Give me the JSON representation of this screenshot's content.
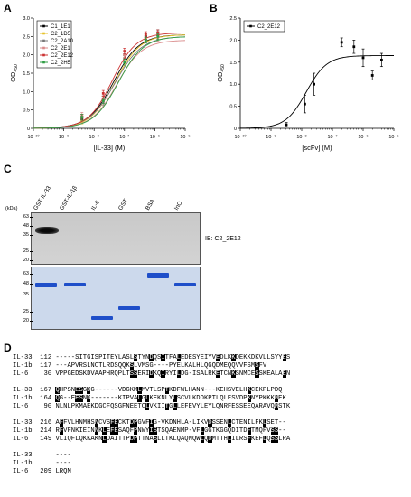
{
  "panels": {
    "a": "A",
    "b": "B",
    "c": "C",
    "d": "D"
  },
  "chart_data": [
    {
      "type": "line",
      "xlabel": "[IL-33] (M)",
      "ylabel": "OD",
      "ylabel_sub": "450",
      "xscale": "log",
      "xlim": [
        1e-10,
        1e-05
      ],
      "ylim": [
        0,
        3.0
      ],
      "xticks": [
        "10⁻¹⁰",
        "10⁻⁹",
        "10⁻⁸",
        "10⁻⁷",
        "10⁻⁶",
        "10⁻⁵"
      ],
      "yticks": [
        "0",
        "0.5",
        "1.0",
        "1.5",
        "2.0",
        "2.5",
        "3.0"
      ],
      "legend_position": "top-left",
      "series": [
        {
          "name": "C1_1E1",
          "color": "#000000",
          "bottom": 0.0,
          "top": 2.55,
          "logEC50": -7.35,
          "hill": 1.05,
          "points": [
            [
              -8.4,
              0.25
            ],
            [
              -7.7,
              0.8
            ],
            [
              -7.0,
              2.0
            ],
            [
              -6.3,
              2.5
            ],
            [
              -5.9,
              2.6
            ]
          ]
        },
        {
          "name": "C2_1D5",
          "color": "#e6c229",
          "bottom": 0.0,
          "top": 2.55,
          "logEC50": -7.3,
          "hill": 1.05,
          "points": [
            [
              -8.4,
              0.2
            ],
            [
              -7.7,
              0.75
            ],
            [
              -7.0,
              1.9
            ],
            [
              -6.3,
              2.45
            ],
            [
              -5.9,
              2.55
            ]
          ]
        },
        {
          "name": "C2_2A10",
          "color": "#777777",
          "bottom": 0.0,
          "top": 2.5,
          "logEC50": -7.3,
          "hill": 1.0,
          "points": [
            [
              -8.4,
              0.3
            ],
            [
              -7.7,
              0.7
            ],
            [
              -7.0,
              1.9
            ],
            [
              -6.3,
              2.4
            ],
            [
              -5.9,
              2.55
            ]
          ]
        },
        {
          "name": "C2_2E1",
          "color": "#d98a8a",
          "bottom": 0.0,
          "top": 2.4,
          "logEC50": -7.25,
          "hill": 1.05,
          "points": [
            [
              -8.4,
              0.35
            ],
            [
              -7.7,
              0.8
            ],
            [
              -7.0,
              2.0
            ],
            [
              -6.3,
              2.4
            ],
            [
              -5.9,
              2.45
            ]
          ]
        },
        {
          "name": "C2_2E12",
          "color": "#cc3333",
          "bottom": 0.0,
          "top": 2.6,
          "logEC50": -7.4,
          "hill": 1.1,
          "points": [
            [
              -8.4,
              0.3
            ],
            [
              -7.7,
              0.95
            ],
            [
              -7.0,
              2.1
            ],
            [
              -6.3,
              2.55
            ],
            [
              -5.9,
              2.6
            ]
          ]
        },
        {
          "name": "C2_2H5",
          "color": "#2f9e44",
          "bottom": 0.0,
          "top": 2.5,
          "logEC50": -7.2,
          "hill": 1.05,
          "points": [
            [
              -8.4,
              0.3
            ],
            [
              -7.7,
              0.75
            ],
            [
              -7.0,
              1.8
            ],
            [
              -6.3,
              2.4
            ],
            [
              -5.9,
              2.5
            ]
          ]
        }
      ]
    },
    {
      "type": "scatter",
      "xlabel": "[scFv] (M)",
      "ylabel": "OD",
      "ylabel_sub": "450",
      "xscale": "log",
      "xlim": [
        1e-10,
        1e-05
      ],
      "ylim": [
        0,
        2.5
      ],
      "xticks": [
        "10⁻¹⁰",
        "10⁻⁹",
        "10⁻⁸",
        "10⁻⁷",
        "10⁻⁶",
        "10⁻⁵"
      ],
      "yticks": [
        "0",
        "0.5",
        "1.0",
        "1.5",
        "2.0",
        "2.5"
      ],
      "legend_position": "top-left",
      "series": [
        {
          "name": "C2_2E12",
          "color": "#000000",
          "bottom": 0.0,
          "top": 1.65,
          "logEC50": -7.85,
          "hill": 1.3,
          "points": [
            [
              -8.5,
              0.08,
              0.05
            ],
            [
              -7.9,
              0.55,
              0.2
            ],
            [
              -7.6,
              1.0,
              0.25
            ],
            [
              -6.7,
              1.95,
              0.1
            ],
            [
              -6.3,
              1.85,
              0.15
            ],
            [
              -6.0,
              1.6,
              0.2
            ],
            [
              -5.7,
              1.2,
              0.1
            ],
            [
              -5.4,
              1.55,
              0.15
            ]
          ]
        }
      ]
    }
  ],
  "blot": {
    "lanes": [
      "GST-IL-33",
      "GST-IL-1β",
      "IL-6",
      "GST",
      "BSA",
      "InC"
    ],
    "kda_label": "(kDa)",
    "wb_markers": [
      "63",
      "48",
      "35",
      "25",
      "20"
    ],
    "gel_markers": [
      "63",
      "48",
      "35",
      "25",
      "20"
    ],
    "ib_label": "IB: C2_2E12"
  },
  "alignment": {
    "blocks": [
      [
        {
          "name": "IL-33",
          "start": "112",
          "seq": "-----SITGISPITEYLASLSTYNDQSITFALEDESYEIYVEDLKKDEKKDKVLLSYYES"
        },
        {
          "name": "IL-1b",
          "start": "117",
          "seq": "---APVRSLNCTLRDSQQKSLVMSG----PYELKALHLQGQDMEQQVVFSMSFV"
        },
        {
          "name": "IL-6",
          "start": "30",
          "seq": "VPPGEDSKDVAAPHRQPLTSSERIDKQIRYILDG-ISALRKETCNKSNMCESSKEALAEN"
        }
      ],
      [
        {
          "name": "IL-33",
          "start": "167",
          "seq": "QHPSNESGDG------VDGKMLMVTLSPTKDFWLHANN---KEHSVELHKCEKPLPDQ"
        },
        {
          "name": "IL-1b",
          "start": "164",
          "seq": "QG--EESND-------KIPVALGLKEKNLYLSCVLKDDKPTLQLESVDPKNYPKKKMEK"
        },
        {
          "name": "IL-6",
          "start": "90",
          "seq": "NLNLPKMAEKDGCFQSGFNEETCLVKIITGLLEFEVYLEYLQNRFESSEEQARAVQMSTK"
        }
      ],
      [
        {
          "name": "IL-33",
          "start": "216",
          "seq": "AFFVLHNMHSNCVSFECKTDPGVFIG-VKDNHLA-LIKVDSSENLCTENILFKLSET--"
        },
        {
          "name": "IL-1b",
          "start": "214",
          "seq": "RFVFNKIEINNKLEFESAQFPNWYISTSQAENMP-VFLGGTKGGQDITDFTMQFVSS--"
        },
        {
          "name": "IL-6",
          "start": "149",
          "seq": "VLIQFLQKKAKNLDAITTPDPTTNASLLTKLQAQNQWLQDMTTHLILRSFKEFLQSSLRA"
        }
      ],
      [
        {
          "name": "IL-33",
          "start": "",
          "seq": "----"
        },
        {
          "name": "IL-1b",
          "start": "",
          "seq": "----"
        },
        {
          "name": "IL-6",
          "start": "209",
          "seq": "LRQM"
        }
      ]
    ]
  }
}
